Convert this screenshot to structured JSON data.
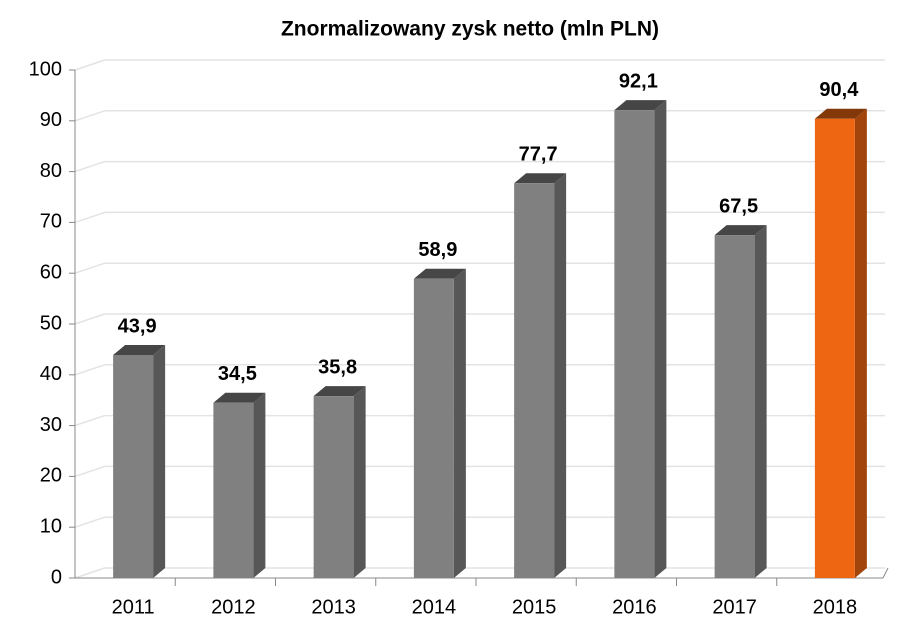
{
  "chart_data": {
    "type": "bar3d",
    "title": "Znormalizowany zysk netto (mln PLN)",
    "categories": [
      "2011",
      "2012",
      "2013",
      "2014",
      "2015",
      "2016",
      "2017",
      "2018"
    ],
    "values": [
      43.9,
      34.5,
      35.8,
      58.9,
      77.7,
      92.1,
      67.5,
      90.4
    ],
    "value_labels": [
      "43,9",
      "34,5",
      "35,8",
      "58,9",
      "77,7",
      "92,1",
      "67,5",
      "90,4"
    ],
    "colors": [
      "#808080",
      "#808080",
      "#808080",
      "#808080",
      "#808080",
      "#808080",
      "#808080",
      "#ee6611"
    ],
    "ylim": [
      0,
      100
    ],
    "yticks": [
      0,
      10,
      20,
      30,
      40,
      50,
      60,
      70,
      80,
      90,
      100
    ],
    "grid": true
  }
}
